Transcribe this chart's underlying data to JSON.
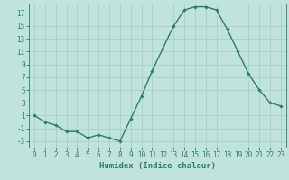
{
  "x": [
    0,
    1,
    2,
    3,
    4,
    5,
    6,
    7,
    8,
    9,
    10,
    11,
    12,
    13,
    14,
    15,
    16,
    17,
    18,
    19,
    20,
    21,
    22,
    23
  ],
  "y": [
    1,
    0,
    -0.5,
    -1.5,
    -1.5,
    -2.5,
    -2,
    -2.5,
    -3,
    0.5,
    4,
    8,
    11.5,
    15,
    17.5,
    18,
    18,
    17.5,
    14.5,
    11,
    7.5,
    5,
    3,
    2.5
  ],
  "line_color": "#2d7a6e",
  "marker": "D",
  "marker_size": 1.8,
  "bg_color": "#c0e4dc",
  "grid_color": "#aacfc6",
  "tick_color": "#2d7a6e",
  "xlabel": "Humidex (Indice chaleur)",
  "xlabel_fontsize": 6.5,
  "yticks": [
    -3,
    -1,
    1,
    3,
    5,
    7,
    9,
    11,
    13,
    15,
    17
  ],
  "ylim": [
    -4,
    18.5
  ],
  "xlim": [
    -0.5,
    23.5
  ],
  "line_width": 1.0,
  "tick_fontsize": 5.5
}
